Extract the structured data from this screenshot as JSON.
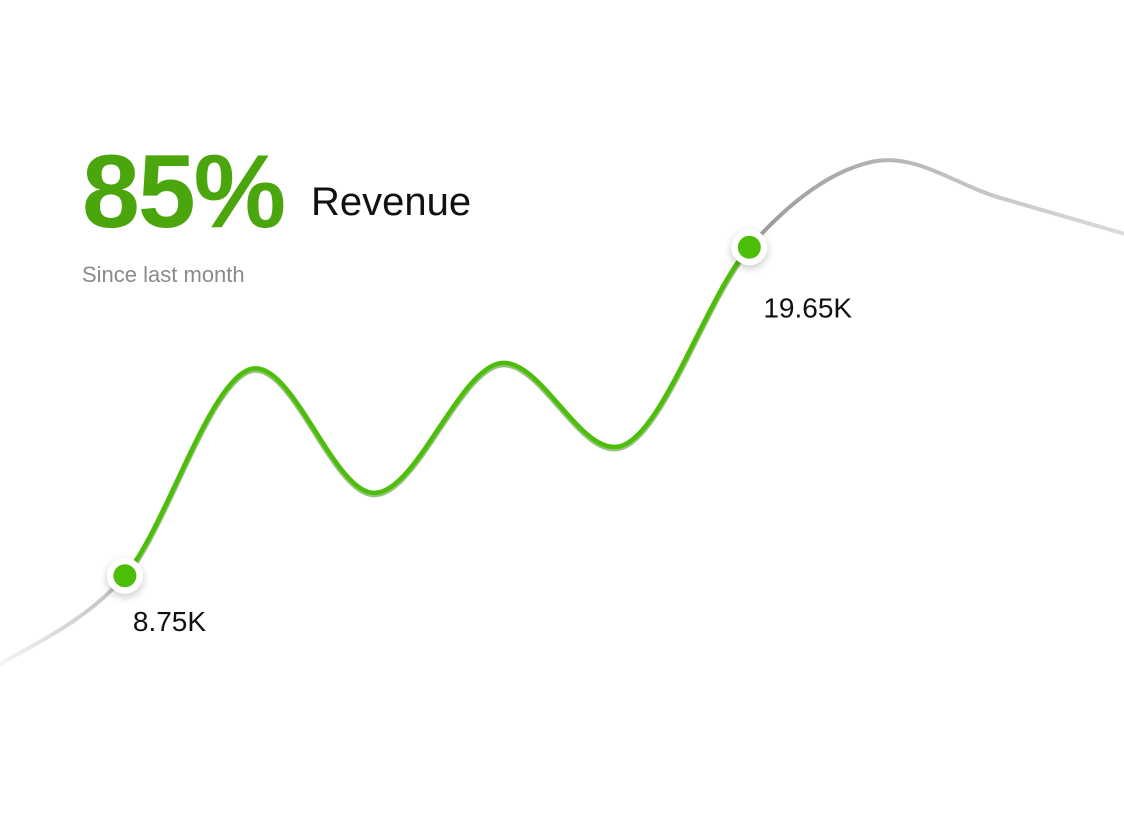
{
  "header": {
    "kpi_value": "85%",
    "kpi_label": "Revenue",
    "kpi_subtitle": "Since last month"
  },
  "colors": {
    "accent": "#4cbe0a",
    "accent_dark": "#3f8f12",
    "kpi_text": "#4aa60c",
    "line_faded": "#bdbdbd",
    "grid": "#d4d4d4"
  },
  "chart_data": {
    "type": "line",
    "series": [
      {
        "x": [
          0,
          1,
          2,
          3,
          4,
          5,
          6,
          7,
          8,
          9
        ],
        "values": [
          5.8,
          8.75,
          15.6,
          11.5,
          15.8,
          13.1,
          19.65,
          22.5,
          21.3,
          20.1
        ]
      }
    ],
    "highlighted_range": [
      1,
      6
    ],
    "data_labels": [
      {
        "index": 1,
        "text": "8.75K"
      },
      {
        "index": 6,
        "text": "19.65K"
      }
    ],
    "ylim": [
      3.3,
      25.2
    ],
    "gridlines": [
      6.35,
      11.35,
      16.35,
      21.35,
      26.35
    ],
    "grid": true,
    "legend": "none"
  }
}
